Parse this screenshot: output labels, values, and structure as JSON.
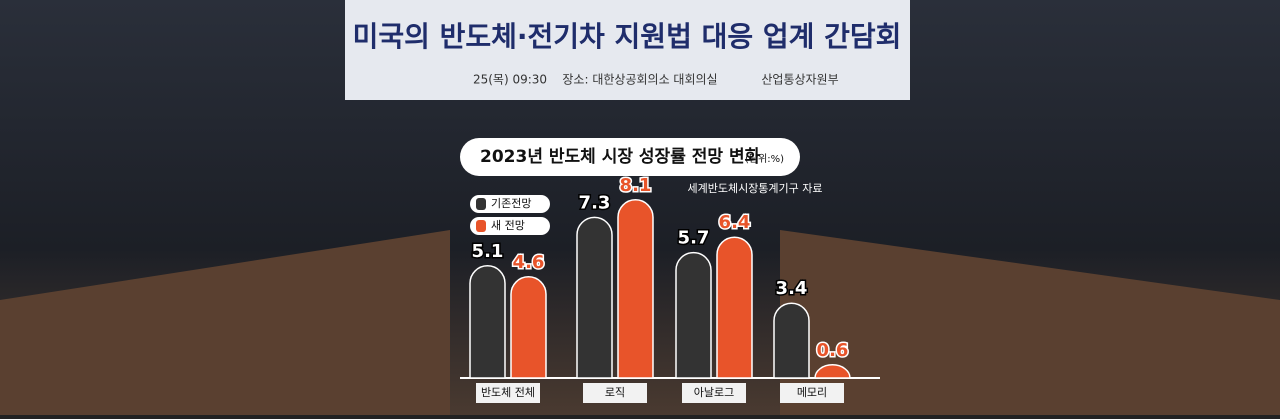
{
  "photo": {
    "banner_title": "미국의 반도체·전기차 지원법 대응 업계 간담회",
    "banner_time": "25(목) 09:30",
    "banner_place": "장소: 대한상공회의소 대회의실",
    "banner_org": "산업통상자원부"
  },
  "chart_data": {
    "type": "bar",
    "title": "2023년 반도체 시장 성장률 전망 변화",
    "unit": "(단위:%)",
    "source": "세계반도체시장통계기구 자료",
    "categories": [
      "반도체 전체",
      "로직",
      "아날로그",
      "메모리"
    ],
    "series": [
      {
        "name": "기존전망",
        "color": "#333333",
        "values": [
          5.1,
          7.3,
          5.7,
          3.4
        ]
      },
      {
        "name": "새 전망",
        "color": "#e8542a",
        "values": [
          4.6,
          8.1,
          6.4,
          0.6
        ]
      }
    ]
  }
}
